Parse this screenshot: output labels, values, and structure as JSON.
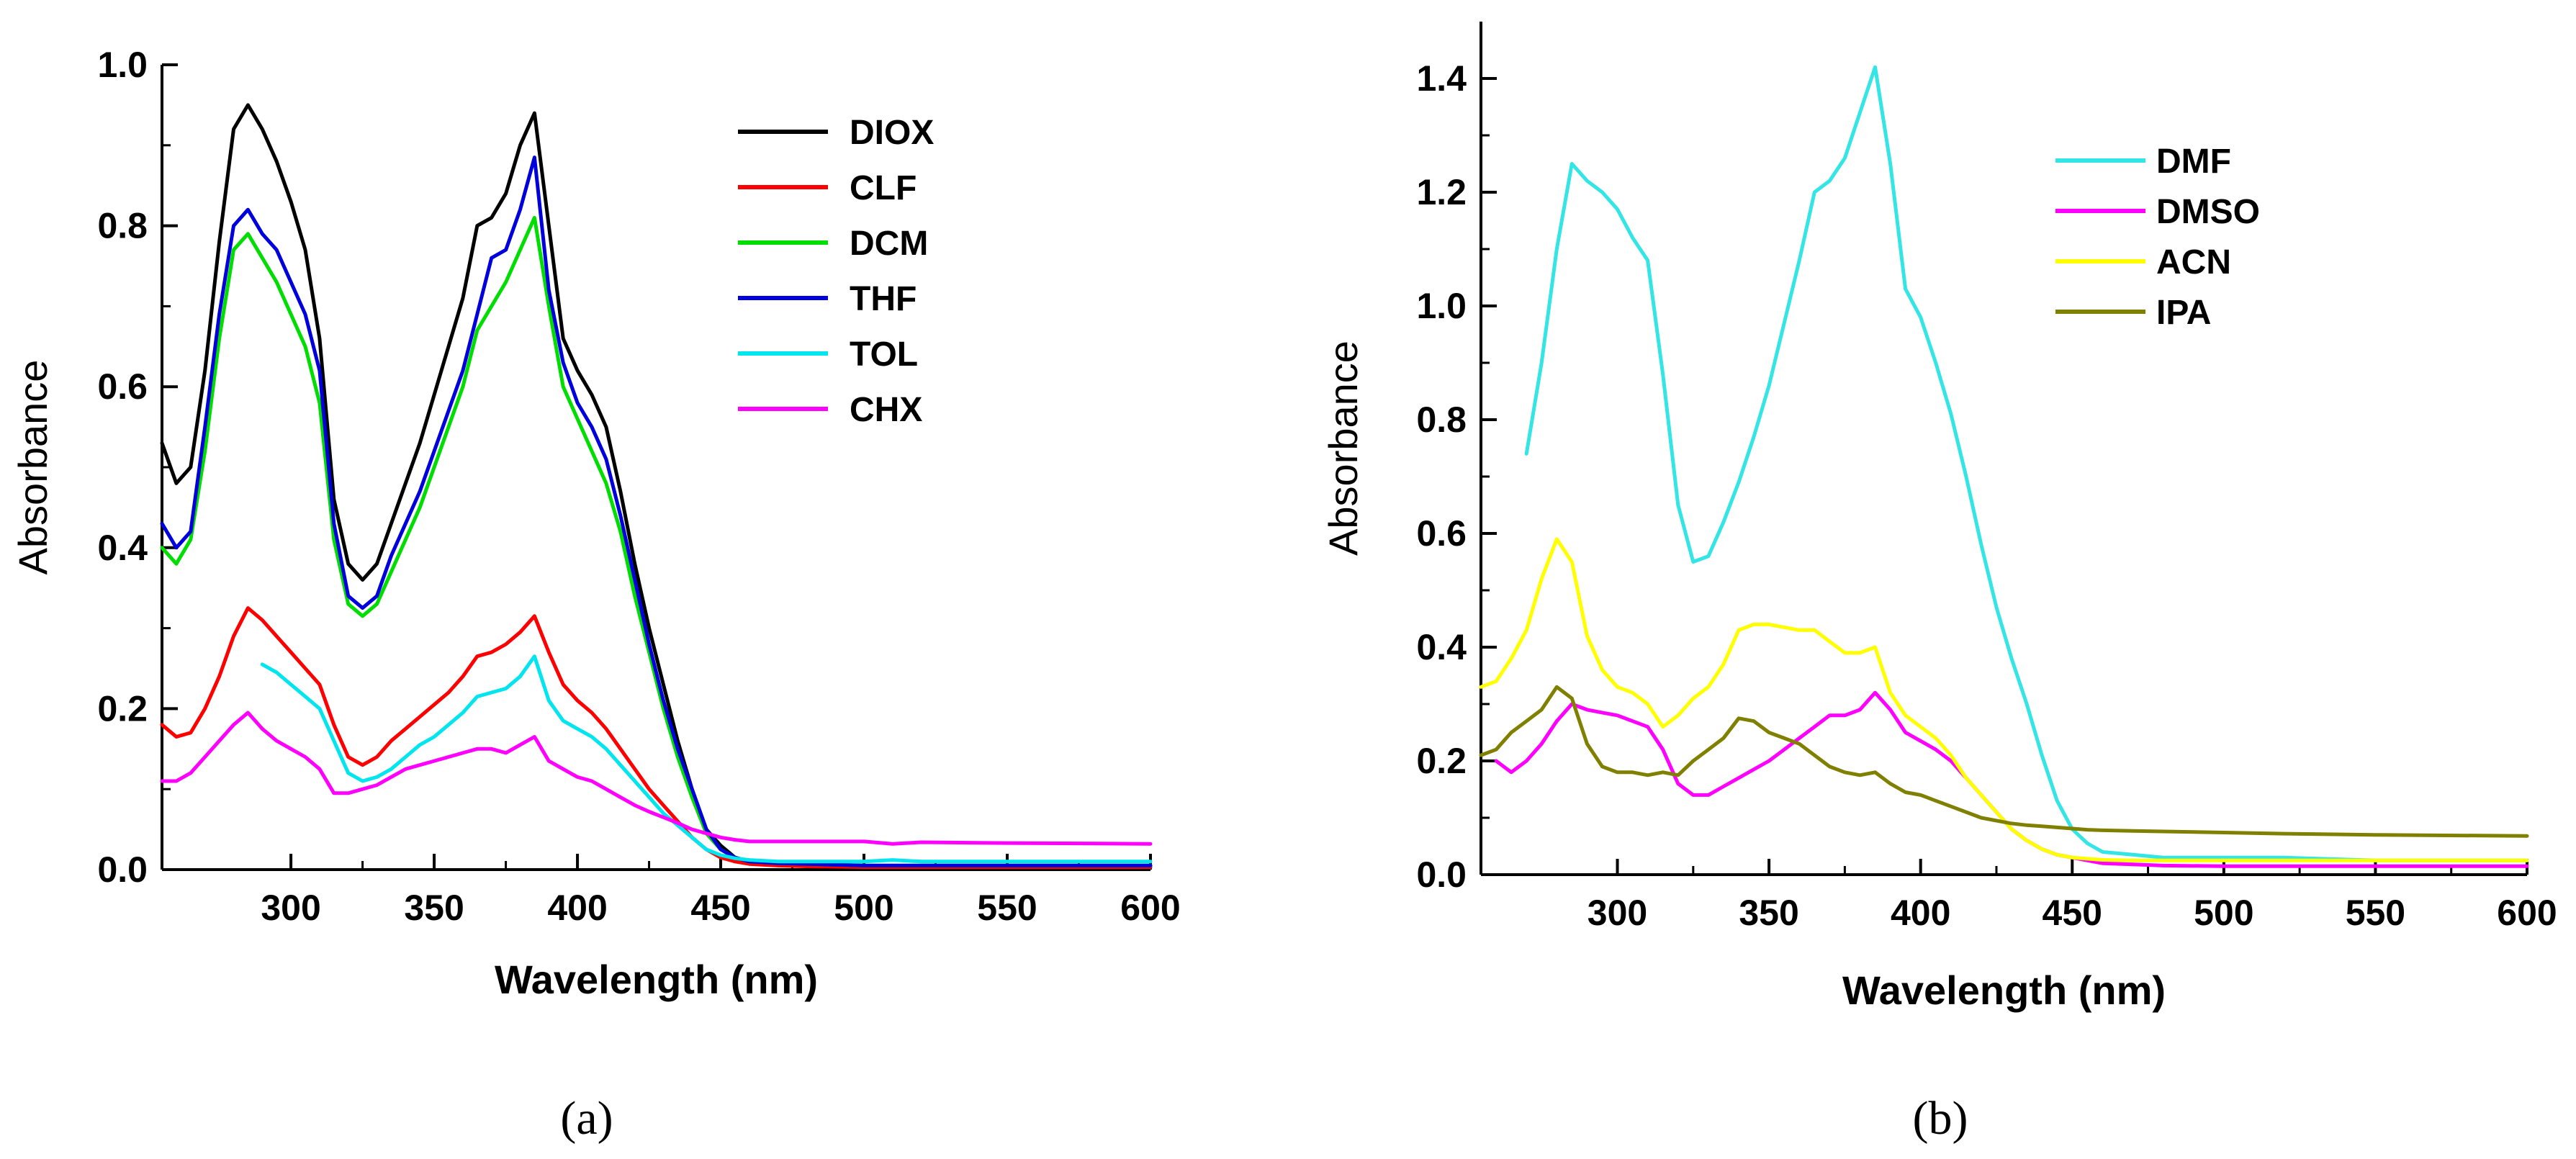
{
  "chart_data": [
    {
      "type": "line",
      "panel_label": "(a)",
      "xlabel": "Wavelength (nm)",
      "ylabel": "Absorbance",
      "xlim": [
        255,
        600
      ],
      "ylim": [
        0.0,
        1.0
      ],
      "xticks": [
        300,
        350,
        400,
        450,
        500,
        550,
        600
      ],
      "xtick_labels": [
        "300",
        "350",
        "400",
        "450",
        "500",
        "550",
        "600"
      ],
      "yticks": [
        0.0,
        0.2,
        0.4,
        0.6,
        0.8,
        1.0
      ],
      "ytick_labels": [
        "0.0",
        "0.2",
        "0.4",
        "0.6",
        "0.8",
        "1.0"
      ],
      "legend_position": "top-right",
      "series": [
        {
          "name": "DIOX",
          "color": "#000000",
          "x": [
            255,
            260,
            265,
            270,
            275,
            280,
            285,
            290,
            295,
            300,
            305,
            310,
            315,
            320,
            325,
            330,
            335,
            340,
            345,
            350,
            355,
            360,
            365,
            370,
            375,
            380,
            385,
            390,
            395,
            400,
            405,
            410,
            415,
            420,
            425,
            430,
            435,
            440,
            445,
            450,
            455,
            460,
            470,
            480,
            500,
            520,
            550,
            600
          ],
          "y": [
            0.53,
            0.48,
            0.5,
            0.62,
            0.78,
            0.92,
            0.95,
            0.92,
            0.88,
            0.83,
            0.77,
            0.66,
            0.46,
            0.38,
            0.36,
            0.38,
            0.43,
            0.48,
            0.53,
            0.59,
            0.65,
            0.71,
            0.8,
            0.81,
            0.84,
            0.9,
            0.94,
            0.8,
            0.66,
            0.62,
            0.59,
            0.55,
            0.47,
            0.38,
            0.3,
            0.23,
            0.16,
            0.1,
            0.05,
            0.03,
            0.015,
            0.01,
            0.008,
            0.007,
            0.005,
            0.005,
            0.005,
            0.005
          ]
        },
        {
          "name": "CLF",
          "color": "#ff0000",
          "x": [
            255,
            260,
            265,
            270,
            275,
            280,
            285,
            290,
            295,
            300,
            305,
            310,
            315,
            320,
            325,
            330,
            335,
            340,
            345,
            350,
            355,
            360,
            365,
            370,
            375,
            380,
            385,
            390,
            395,
            400,
            405,
            410,
            415,
            420,
            425,
            430,
            435,
            440,
            445,
            450,
            455,
            460,
            470,
            480,
            500,
            520,
            550,
            600
          ],
          "y": [
            0.18,
            0.165,
            0.17,
            0.2,
            0.24,
            0.29,
            0.325,
            0.31,
            0.29,
            0.27,
            0.25,
            0.23,
            0.18,
            0.14,
            0.13,
            0.14,
            0.16,
            0.175,
            0.19,
            0.205,
            0.22,
            0.24,
            0.265,
            0.27,
            0.28,
            0.295,
            0.315,
            0.27,
            0.23,
            0.21,
            0.195,
            0.175,
            0.15,
            0.125,
            0.1,
            0.08,
            0.06,
            0.04,
            0.025,
            0.015,
            0.01,
            0.007,
            0.005,
            0.004,
            0.003,
            0.003,
            0.003,
            0.003
          ]
        },
        {
          "name": "DCM",
          "color": "#00dd00",
          "x": [
            255,
            260,
            265,
            270,
            275,
            280,
            285,
            290,
            295,
            300,
            305,
            310,
            315,
            320,
            325,
            330,
            335,
            340,
            345,
            350,
            355,
            360,
            365,
            370,
            375,
            380,
            385,
            390,
            395,
            400,
            405,
            410,
            415,
            420,
            425,
            430,
            435,
            440,
            445,
            450,
            455,
            460,
            470,
            480,
            500,
            520,
            550,
            600
          ],
          "y": [
            0.4,
            0.38,
            0.41,
            0.52,
            0.66,
            0.77,
            0.79,
            0.76,
            0.73,
            0.69,
            0.65,
            0.58,
            0.41,
            0.33,
            0.315,
            0.33,
            0.37,
            0.41,
            0.45,
            0.5,
            0.55,
            0.6,
            0.67,
            0.7,
            0.73,
            0.77,
            0.81,
            0.7,
            0.6,
            0.56,
            0.52,
            0.48,
            0.42,
            0.34,
            0.27,
            0.2,
            0.14,
            0.09,
            0.045,
            0.025,
            0.015,
            0.01,
            0.008,
            0.007,
            0.005,
            0.005,
            0.005,
            0.005
          ]
        },
        {
          "name": "THF",
          "color": "#0000dd",
          "x": [
            255,
            260,
            265,
            270,
            275,
            280,
            285,
            290,
            295,
            300,
            305,
            310,
            315,
            320,
            325,
            330,
            335,
            340,
            345,
            350,
            355,
            360,
            365,
            370,
            375,
            380,
            385,
            390,
            395,
            400,
            405,
            410,
            415,
            420,
            425,
            430,
            435,
            440,
            445,
            450,
            455,
            460,
            470,
            480,
            500,
            520,
            550,
            600
          ],
          "y": [
            0.43,
            0.4,
            0.42,
            0.55,
            0.69,
            0.8,
            0.82,
            0.79,
            0.77,
            0.73,
            0.69,
            0.62,
            0.43,
            0.34,
            0.325,
            0.34,
            0.39,
            0.43,
            0.47,
            0.52,
            0.57,
            0.62,
            0.69,
            0.76,
            0.77,
            0.82,
            0.885,
            0.72,
            0.63,
            0.58,
            0.55,
            0.51,
            0.44,
            0.36,
            0.28,
            0.21,
            0.15,
            0.1,
            0.05,
            0.025,
            0.015,
            0.01,
            0.008,
            0.007,
            0.005,
            0.005,
            0.005,
            0.005
          ]
        },
        {
          "name": "TOL",
          "color": "#00e5ee",
          "x": [
            290,
            295,
            300,
            305,
            310,
            315,
            320,
            325,
            330,
            335,
            340,
            345,
            350,
            355,
            360,
            365,
            370,
            375,
            380,
            385,
            390,
            395,
            400,
            405,
            410,
            415,
            420,
            425,
            430,
            435,
            440,
            445,
            450,
            455,
            460,
            470,
            480,
            500,
            510,
            520,
            550,
            600
          ],
          "y": [
            0.255,
            0.245,
            0.23,
            0.215,
            0.2,
            0.16,
            0.12,
            0.11,
            0.115,
            0.125,
            0.14,
            0.155,
            0.165,
            0.18,
            0.195,
            0.215,
            0.22,
            0.225,
            0.24,
            0.265,
            0.21,
            0.185,
            0.175,
            0.165,
            0.15,
            0.13,
            0.11,
            0.09,
            0.07,
            0.055,
            0.04,
            0.025,
            0.018,
            0.014,
            0.012,
            0.01,
            0.01,
            0.01,
            0.012,
            0.01,
            0.01,
            0.01
          ]
        },
        {
          "name": "CHX",
          "color": "#ff00ff",
          "x": [
            255,
            260,
            265,
            270,
            275,
            280,
            285,
            290,
            295,
            300,
            305,
            310,
            315,
            320,
            325,
            330,
            335,
            340,
            345,
            350,
            355,
            360,
            365,
            370,
            375,
            380,
            385,
            390,
            395,
            400,
            405,
            410,
            415,
            420,
            425,
            430,
            435,
            440,
            445,
            450,
            455,
            460,
            470,
            480,
            500,
            510,
            520,
            550,
            600
          ],
          "y": [
            0.11,
            0.11,
            0.12,
            0.14,
            0.16,
            0.18,
            0.195,
            0.175,
            0.16,
            0.15,
            0.14,
            0.125,
            0.095,
            0.095,
            0.1,
            0.105,
            0.115,
            0.125,
            0.13,
            0.135,
            0.14,
            0.145,
            0.15,
            0.15,
            0.145,
            0.155,
            0.165,
            0.135,
            0.125,
            0.115,
            0.11,
            0.1,
            0.09,
            0.08,
            0.072,
            0.065,
            0.058,
            0.05,
            0.045,
            0.04,
            0.037,
            0.035,
            0.035,
            0.035,
            0.035,
            0.032,
            0.034,
            0.033,
            0.032
          ]
        }
      ]
    },
    {
      "type": "line",
      "panel_label": "(b)",
      "xlabel": "Wavelength (nm)",
      "ylabel": "Absorbance",
      "xlim": [
        255,
        600
      ],
      "ylim": [
        0.0,
        1.5
      ],
      "xticks": [
        300,
        350,
        400,
        450,
        500,
        550,
        600
      ],
      "xtick_labels": [
        "300",
        "350",
        "400",
        "450",
        "500",
        "550",
        "600"
      ],
      "yticks": [
        0.0,
        0.2,
        0.4,
        0.6,
        0.8,
        1.0,
        1.2,
        1.4
      ],
      "ytick_labels": [
        "0.0",
        "0.2",
        "0.4",
        "0.6",
        "0.8",
        "1.0",
        "1.2",
        "1.4"
      ],
      "legend_position": "top-right",
      "series": [
        {
          "name": "DMF",
          "color": "#33e5e5",
          "x": [
            270,
            275,
            280,
            285,
            290,
            295,
            300,
            305,
            310,
            315,
            320,
            325,
            330,
            335,
            340,
            345,
            350,
            355,
            360,
            365,
            370,
            375,
            380,
            385,
            390,
            395,
            400,
            405,
            410,
            415,
            420,
            425,
            430,
            435,
            440,
            445,
            450,
            455,
            460,
            470,
            480,
            500,
            520,
            550,
            600
          ],
          "y": [
            0.74,
            0.9,
            1.1,
            1.25,
            1.22,
            1.2,
            1.17,
            1.12,
            1.08,
            0.88,
            0.65,
            0.55,
            0.56,
            0.62,
            0.69,
            0.77,
            0.86,
            0.97,
            1.08,
            1.2,
            1.22,
            1.26,
            1.34,
            1.42,
            1.25,
            1.03,
            0.98,
            0.9,
            0.81,
            0.7,
            0.58,
            0.47,
            0.38,
            0.3,
            0.21,
            0.13,
            0.08,
            0.055,
            0.04,
            0.035,
            0.03,
            0.03,
            0.03,
            0.025,
            0.025
          ]
        },
        {
          "name": "DMSO",
          "color": "#ff00ff",
          "x": [
            260,
            265,
            270,
            275,
            280,
            285,
            290,
            295,
            300,
            305,
            310,
            315,
            320,
            325,
            330,
            335,
            340,
            345,
            350,
            355,
            360,
            365,
            370,
            375,
            380,
            385,
            390,
            395,
            400,
            405,
            410,
            415,
            420,
            425,
            430,
            435,
            440,
            445,
            450,
            455,
            460,
            470,
            480,
            500,
            520,
            550,
            600
          ],
          "y": [
            0.2,
            0.18,
            0.2,
            0.23,
            0.27,
            0.3,
            0.29,
            0.285,
            0.28,
            0.27,
            0.26,
            0.22,
            0.16,
            0.14,
            0.14,
            0.155,
            0.17,
            0.185,
            0.2,
            0.22,
            0.24,
            0.26,
            0.28,
            0.28,
            0.29,
            0.32,
            0.29,
            0.25,
            0.235,
            0.22,
            0.2,
            0.17,
            0.14,
            0.11,
            0.08,
            0.06,
            0.045,
            0.035,
            0.03,
            0.025,
            0.02,
            0.018,
            0.016,
            0.015,
            0.015,
            0.015,
            0.015
          ]
        },
        {
          "name": "ACN",
          "color": "#ffff00",
          "x": [
            255,
            260,
            265,
            270,
            275,
            280,
            285,
            290,
            295,
            300,
            305,
            310,
            315,
            320,
            325,
            330,
            335,
            340,
            345,
            350,
            355,
            360,
            365,
            370,
            375,
            380,
            385,
            390,
            395,
            400,
            405,
            410,
            415,
            420,
            425,
            430,
            435,
            440,
            445,
            450,
            455,
            460,
            470,
            480,
            500,
            520,
            550,
            600
          ],
          "y": [
            0.33,
            0.34,
            0.38,
            0.43,
            0.52,
            0.59,
            0.55,
            0.42,
            0.36,
            0.33,
            0.32,
            0.3,
            0.26,
            0.28,
            0.31,
            0.33,
            0.37,
            0.43,
            0.44,
            0.44,
            0.435,
            0.43,
            0.43,
            0.41,
            0.39,
            0.39,
            0.4,
            0.32,
            0.28,
            0.26,
            0.24,
            0.21,
            0.17,
            0.14,
            0.11,
            0.08,
            0.06,
            0.045,
            0.035,
            0.03,
            0.028,
            0.026,
            0.025,
            0.025,
            0.025,
            0.025,
            0.025,
            0.025
          ]
        },
        {
          "name": "IPA",
          "color": "#808000",
          "x": [
            255,
            260,
            265,
            270,
            275,
            280,
            285,
            290,
            295,
            300,
            305,
            310,
            315,
            320,
            325,
            330,
            335,
            340,
            345,
            350,
            355,
            360,
            365,
            370,
            375,
            380,
            385,
            390,
            395,
            400,
            405,
            410,
            415,
            420,
            425,
            430,
            435,
            440,
            445,
            450,
            455,
            460,
            470,
            480,
            500,
            520,
            550,
            600
          ],
          "y": [
            0.21,
            0.22,
            0.25,
            0.27,
            0.29,
            0.33,
            0.31,
            0.23,
            0.19,
            0.18,
            0.18,
            0.175,
            0.18,
            0.175,
            0.2,
            0.22,
            0.24,
            0.275,
            0.27,
            0.25,
            0.24,
            0.23,
            0.21,
            0.19,
            0.18,
            0.175,
            0.18,
            0.16,
            0.145,
            0.14,
            0.13,
            0.12,
            0.11,
            0.1,
            0.095,
            0.09,
            0.087,
            0.085,
            0.083,
            0.081,
            0.079,
            0.078,
            0.077,
            0.076,
            0.074,
            0.072,
            0.07,
            0.068
          ]
        }
      ]
    }
  ]
}
